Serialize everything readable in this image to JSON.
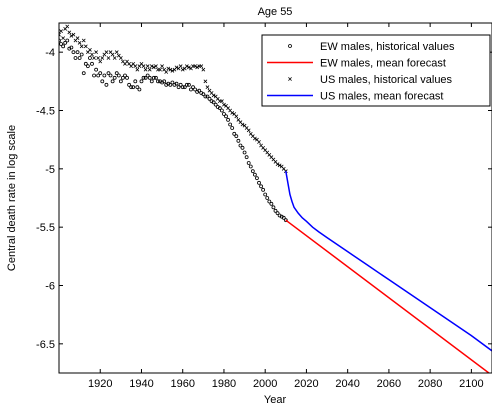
{
  "chart_data": {
    "type": "line",
    "title": "Age 55",
    "xlabel": "Year",
    "ylabel": "Central death rate in log scale",
    "xlim": [
      1900,
      2110
    ],
    "ylim": [
      -6.75,
      -3.75
    ],
    "x_ticks": [
      1920,
      1940,
      1960,
      1980,
      2000,
      2020,
      2040,
      2060,
      2080,
      2100
    ],
    "y_ticks": [
      -6.5,
      -6,
      -5.5,
      -5,
      -4.5,
      -4
    ],
    "y_tick_labels": [
      "-6.5",
      "-6",
      "-5.5",
      "-5",
      "-4.5",
      "-4"
    ],
    "grid": false,
    "legend_position": "top-right",
    "legend": [
      {
        "label": "EW males, historical values",
        "marker": "circle",
        "color": "#000000"
      },
      {
        "label": "EW males, mean forecast",
        "marker": "line",
        "color": "#ff0000"
      },
      {
        "label": "US males, historical values",
        "marker": "cross",
        "color": "#000000"
      },
      {
        "label": "US males, mean forecast",
        "marker": "line",
        "color": "#0000ff"
      }
    ],
    "series": [
      {
        "name": "EW males, historical values",
        "style": "circle",
        "color": "#000000",
        "x": [
          1900,
          1901,
          1902,
          1903,
          1904,
          1905,
          1906,
          1907,
          1908,
          1909,
          1910,
          1911,
          1912,
          1913,
          1914,
          1915,
          1916,
          1917,
          1918,
          1919,
          1920,
          1921,
          1922,
          1923,
          1924,
          1925,
          1926,
          1927,
          1928,
          1929,
          1930,
          1931,
          1932,
          1933,
          1934,
          1935,
          1936,
          1937,
          1938,
          1939,
          1940,
          1941,
          1942,
          1943,
          1944,
          1945,
          1946,
          1947,
          1948,
          1949,
          1950,
          1951,
          1952,
          1953,
          1954,
          1955,
          1956,
          1957,
          1958,
          1959,
          1960,
          1961,
          1962,
          1963,
          1964,
          1965,
          1966,
          1967,
          1968,
          1969,
          1970,
          1971,
          1972,
          1973,
          1974,
          1975,
          1976,
          1977,
          1978,
          1979,
          1980,
          1981,
          1982,
          1983,
          1984,
          1985,
          1986,
          1987,
          1988,
          1989,
          1990,
          1991,
          1992,
          1993,
          1994,
          1995,
          1996,
          1997,
          1998,
          1999,
          2000,
          2001,
          2002,
          2003,
          2004,
          2005,
          2006,
          2007,
          2008,
          2009,
          2010
        ],
        "y": [
          -3.9,
          -3.93,
          -3.95,
          -3.92,
          -3.9,
          -3.97,
          -3.96,
          -4.0,
          -4.05,
          -4.0,
          -4.05,
          -4.02,
          -4.18,
          -4.1,
          -4.12,
          -4.05,
          -4.1,
          -4.2,
          -4.15,
          -4.2,
          -4.18,
          -4.25,
          -4.2,
          -4.28,
          -4.18,
          -4.2,
          -4.25,
          -4.22,
          -4.18,
          -4.2,
          -4.25,
          -4.22,
          -4.2,
          -4.22,
          -4.28,
          -4.3,
          -4.3,
          -4.25,
          -4.3,
          -4.32,
          -4.25,
          -4.22,
          -4.22,
          -4.2,
          -4.22,
          -4.25,
          -4.22,
          -4.22,
          -4.25,
          -4.25,
          -4.26,
          -4.25,
          -4.28,
          -4.27,
          -4.28,
          -4.26,
          -4.28,
          -4.27,
          -4.3,
          -4.28,
          -4.3,
          -4.3,
          -4.28,
          -4.28,
          -4.32,
          -4.3,
          -4.32,
          -4.34,
          -4.33,
          -4.35,
          -4.36,
          -4.38,
          -4.38,
          -4.4,
          -4.42,
          -4.43,
          -4.45,
          -4.47,
          -4.48,
          -4.5,
          -4.53,
          -4.55,
          -4.58,
          -4.62,
          -4.65,
          -4.7,
          -4.72,
          -4.76,
          -4.8,
          -4.82,
          -4.86,
          -4.9,
          -4.95,
          -4.98,
          -5.02,
          -5.05,
          -5.08,
          -5.12,
          -5.15,
          -5.18,
          -5.22,
          -5.25,
          -5.28,
          -5.3,
          -5.33,
          -5.36,
          -5.38,
          -5.4,
          -5.41,
          -5.42,
          -5.44
        ]
      },
      {
        "name": "EW males, mean forecast",
        "style": "line",
        "color": "#ff0000",
        "x": [
          2010,
          2110
        ],
        "y": [
          -5.44,
          -6.77
        ]
      },
      {
        "name": "US males, historical values",
        "style": "cross",
        "color": "#000000",
        "x": [
          1900,
          1901,
          1902,
          1903,
          1904,
          1905,
          1906,
          1907,
          1908,
          1909,
          1910,
          1911,
          1912,
          1913,
          1914,
          1915,
          1916,
          1917,
          1918,
          1919,
          1920,
          1921,
          1922,
          1923,
          1924,
          1925,
          1926,
          1927,
          1928,
          1929,
          1930,
          1931,
          1932,
          1933,
          1934,
          1935,
          1936,
          1937,
          1938,
          1939,
          1940,
          1941,
          1942,
          1943,
          1944,
          1945,
          1946,
          1947,
          1948,
          1949,
          1950,
          1951,
          1952,
          1953,
          1954,
          1955,
          1956,
          1957,
          1958,
          1959,
          1960,
          1961,
          1962,
          1963,
          1964,
          1965,
          1966,
          1967,
          1968,
          1969,
          1970,
          1971,
          1972,
          1973,
          1974,
          1975,
          1976,
          1977,
          1978,
          1979,
          1980,
          1981,
          1982,
          1983,
          1984,
          1985,
          1986,
          1987,
          1988,
          1989,
          1990,
          1991,
          1992,
          1993,
          1994,
          1995,
          1996,
          1997,
          1998,
          1999,
          2000,
          2001,
          2002,
          2003,
          2004,
          2005,
          2006,
          2007,
          2008,
          2009,
          2010
        ],
        "y": [
          -3.85,
          -3.82,
          -3.88,
          -3.8,
          -3.78,
          -3.83,
          -3.86,
          -3.85,
          -3.9,
          -3.88,
          -3.92,
          -3.95,
          -3.9,
          -3.95,
          -4.0,
          -3.98,
          -4.02,
          -4.05,
          -4.0,
          -4.05,
          -4.08,
          -4.05,
          -4.02,
          -4.0,
          -4.05,
          -4.0,
          -4.02,
          -4.05,
          -4.0,
          -4.03,
          -4.05,
          -4.08,
          -4.1,
          -4.08,
          -4.1,
          -4.12,
          -4.1,
          -4.12,
          -4.15,
          -4.12,
          -4.1,
          -4.12,
          -4.15,
          -4.12,
          -4.15,
          -4.12,
          -4.13,
          -4.12,
          -4.15,
          -4.15,
          -4.12,
          -4.15,
          -4.17,
          -4.14,
          -4.15,
          -4.16,
          -4.15,
          -4.13,
          -4.14,
          -4.12,
          -4.15,
          -4.14,
          -4.12,
          -4.13,
          -4.14,
          -4.12,
          -4.12,
          -4.13,
          -4.12,
          -4.12,
          -4.15,
          -4.25,
          -4.3,
          -4.33,
          -4.35,
          -4.37,
          -4.38,
          -4.4,
          -4.42,
          -4.42,
          -4.45,
          -4.46,
          -4.48,
          -4.5,
          -4.52,
          -4.53,
          -4.55,
          -4.58,
          -4.6,
          -4.62,
          -4.63,
          -4.65,
          -4.67,
          -4.7,
          -4.72,
          -4.74,
          -4.75,
          -4.77,
          -4.8,
          -4.82,
          -4.84,
          -4.86,
          -4.88,
          -4.9,
          -4.92,
          -4.94,
          -4.96,
          -4.97,
          -4.98,
          -5.0,
          -5.02
        ]
      },
      {
        "name": "US males, mean forecast",
        "style": "line",
        "color": "#0000ff",
        "x": [
          2010,
          2011,
          2012,
          2013,
          2014,
          2016,
          2018,
          2020,
          2023,
          2026,
          2030,
          2040,
          2050,
          2060,
          2070,
          2080,
          2090,
          2100,
          2110
        ],
        "y": [
          -5.02,
          -5.12,
          -5.22,
          -5.28,
          -5.33,
          -5.38,
          -5.42,
          -5.45,
          -5.5,
          -5.54,
          -5.59,
          -5.71,
          -5.83,
          -5.95,
          -6.07,
          -6.19,
          -6.31,
          -6.43,
          -6.56
        ]
      }
    ]
  }
}
